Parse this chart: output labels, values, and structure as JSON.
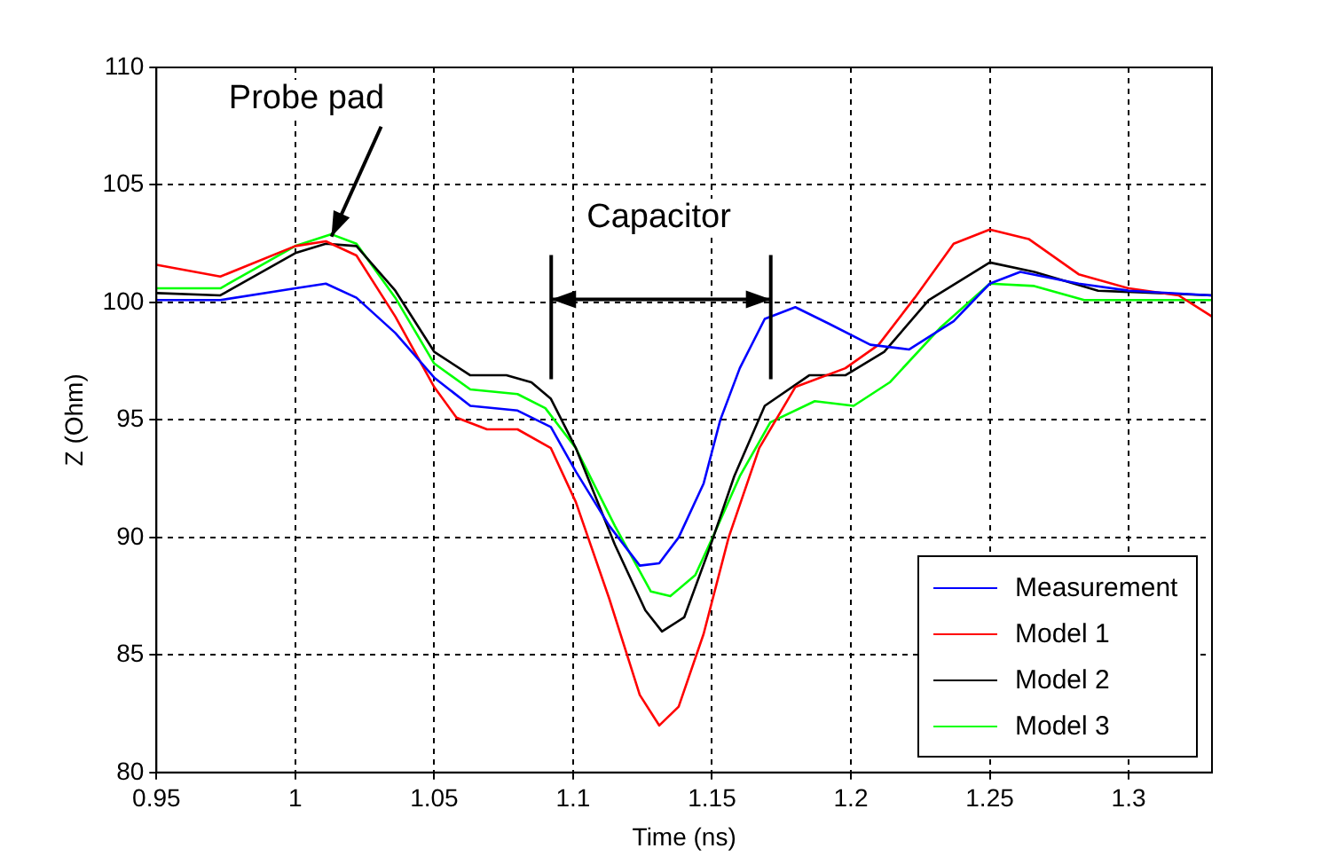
{
  "chart_data": {
    "type": "line",
    "xlabel": "Time (ns)",
    "ylabel": "Z (Ohm)",
    "xlim": [
      0.95,
      1.33
    ],
    "xticks": [
      0.95,
      1,
      1.05,
      1.1,
      1.15,
      1.2,
      1.25,
      1.3
    ],
    "ylim": [
      80,
      110
    ],
    "yticks": [
      80,
      85,
      90,
      95,
      100,
      105,
      110
    ],
    "grid": true,
    "legend": "bottom right",
    "marker": "none",
    "line_style": "solid",
    "annotations": [
      {
        "text": "Probe pad",
        "x": 1.013,
        "y": 102.8
      },
      "Capacitor"
    ],
    "series": [
      {
        "name": "Measurement",
        "color": "#0000ff",
        "x": [
          0.95,
          0.973,
          1.0,
          1.011,
          1.022,
          1.036,
          1.05,
          1.063,
          1.08,
          1.092,
          1.101,
          1.113,
          1.124,
          1.131,
          1.138,
          1.147,
          1.153,
          1.16,
          1.169,
          1.18,
          1.192,
          1.207,
          1.221,
          1.237,
          1.25,
          1.261,
          1.282,
          1.3,
          1.33
        ],
        "values": [
          100.1,
          100.1,
          100.6,
          100.8,
          100.2,
          98.7,
          96.8,
          95.6,
          95.4,
          94.7,
          92.8,
          90.5,
          88.8,
          88.9,
          90.0,
          92.3,
          95.0,
          97.2,
          99.3,
          99.8,
          99.1,
          98.2,
          98.0,
          99.2,
          100.8,
          101.3,
          100.8,
          100.5,
          100.3
        ]
      },
      {
        "name": "Model 1",
        "color": "#ff0000",
        "x": [
          0.95,
          0.973,
          1.0,
          1.011,
          1.022,
          1.036,
          1.05,
          1.058,
          1.069,
          1.08,
          1.092,
          1.101,
          1.113,
          1.124,
          1.131,
          1.138,
          1.147,
          1.156,
          1.167,
          1.18,
          1.198,
          1.21,
          1.223,
          1.237,
          1.25,
          1.264,
          1.282,
          1.3,
          1.318,
          1.33
        ],
        "values": [
          101.6,
          101.1,
          102.4,
          102.6,
          102.0,
          99.4,
          96.4,
          95.1,
          94.6,
          94.6,
          93.8,
          91.5,
          87.4,
          83.3,
          82.0,
          82.8,
          85.9,
          90.0,
          93.8,
          96.4,
          97.2,
          98.2,
          100.2,
          102.5,
          103.1,
          102.7,
          101.2,
          100.6,
          100.3,
          99.4
        ]
      },
      {
        "name": "Model 2",
        "color": "#000000",
        "x": [
          0.95,
          0.973,
          1.0,
          1.011,
          1.022,
          1.036,
          1.05,
          1.063,
          1.076,
          1.085,
          1.092,
          1.101,
          1.115,
          1.126,
          1.132,
          1.14,
          1.149,
          1.158,
          1.169,
          1.185,
          1.198,
          1.212,
          1.228,
          1.25,
          1.266,
          1.289,
          1.33
        ],
        "values": [
          100.4,
          100.3,
          102.1,
          102.5,
          102.4,
          100.5,
          97.9,
          96.9,
          96.9,
          96.6,
          95.9,
          93.8,
          89.7,
          86.9,
          86.0,
          86.6,
          89.5,
          92.6,
          95.6,
          96.9,
          96.9,
          97.9,
          100.1,
          101.7,
          101.3,
          100.5,
          100.3
        ]
      },
      {
        "name": "Model 3",
        "color": "#00ff00",
        "x": [
          0.95,
          0.973,
          1.0,
          1.013,
          1.022,
          1.036,
          1.05,
          1.063,
          1.08,
          1.09,
          1.101,
          1.115,
          1.128,
          1.135,
          1.144,
          1.151,
          1.16,
          1.171,
          1.187,
          1.201,
          1.214,
          1.232,
          1.25,
          1.266,
          1.284,
          1.33
        ],
        "values": [
          100.6,
          100.6,
          102.4,
          102.9,
          102.5,
          100.2,
          97.4,
          96.3,
          96.1,
          95.5,
          93.8,
          90.5,
          87.7,
          87.5,
          88.4,
          90.2,
          92.6,
          94.9,
          95.8,
          95.6,
          96.6,
          98.9,
          100.8,
          100.7,
          100.1,
          100.1
        ]
      }
    ]
  }
}
